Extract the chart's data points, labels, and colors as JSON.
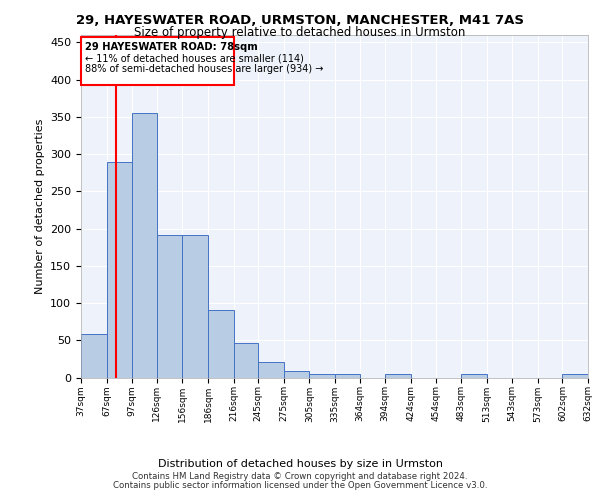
{
  "title1": "29, HAYESWATER ROAD, URMSTON, MANCHESTER, M41 7AS",
  "title2": "Size of property relative to detached houses in Urmston",
  "xlabel": "Distribution of detached houses by size in Urmston",
  "ylabel": "Number of detached properties",
  "footer1": "Contains HM Land Registry data © Crown copyright and database right 2024.",
  "footer2": "Contains public sector information licensed under the Open Government Licence v3.0.",
  "annotation_line1": "29 HAYESWATER ROAD: 78sqm",
  "annotation_line2": "← 11% of detached houses are smaller (114)",
  "annotation_line3": "88% of semi-detached houses are larger (934) →",
  "property_size": 78,
  "bar_color": "#b8cce4",
  "bar_edge_color": "#4472c4",
  "vline_color": "red",
  "background_color": "#eef2fb",
  "bin_edges": [
    37,
    67,
    97,
    126,
    156,
    186,
    216,
    245,
    275,
    305,
    335,
    364,
    394,
    424,
    454,
    483,
    513,
    543,
    573,
    602,
    632
  ],
  "bar_heights": [
    59,
    290,
    355,
    192,
    192,
    90,
    46,
    21,
    9,
    5,
    5,
    0,
    5,
    0,
    0,
    5,
    0,
    0,
    0,
    5
  ],
  "ylim": [
    0,
    460
  ],
  "yticks": [
    0,
    50,
    100,
    150,
    200,
    250,
    300,
    350,
    400,
    450
  ]
}
